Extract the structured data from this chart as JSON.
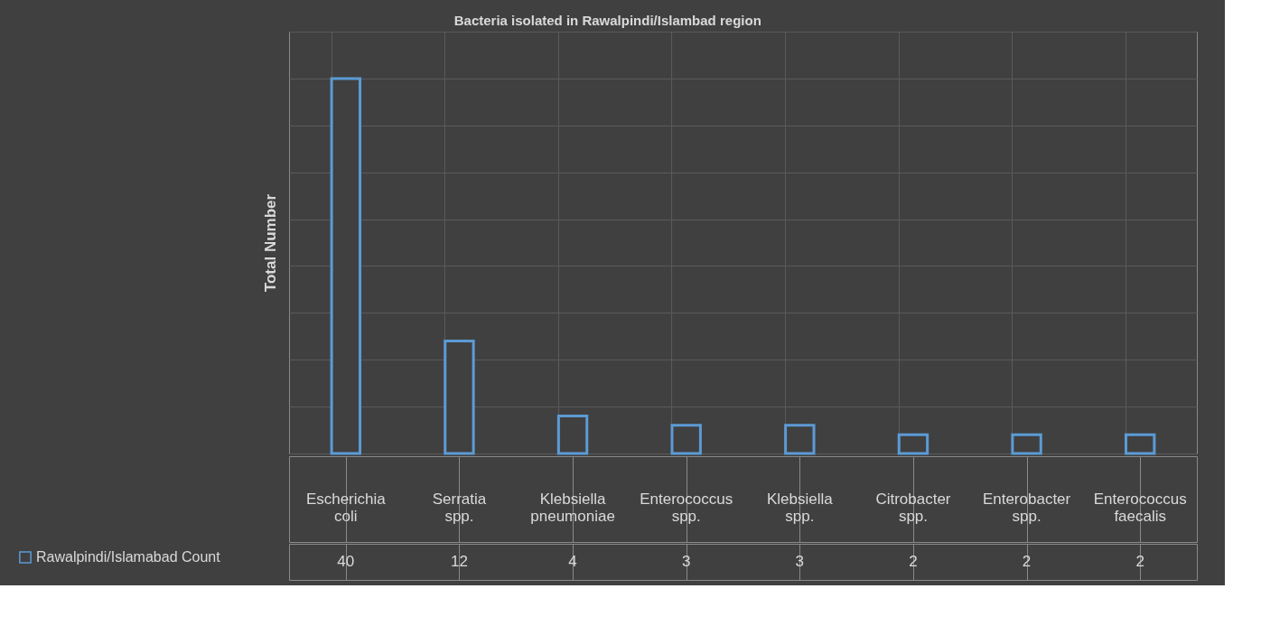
{
  "chart_data": {
    "type": "bar",
    "title": "Bacteria isolated in Rawalpindi/Islambad region",
    "ylabel": "Total Number",
    "categories": [
      "Escherichia coli",
      "Serratia spp.",
      "Klebsiella pneumoniae",
      "Enterococcus spp.",
      "Klebsiella spp.",
      "Citrobacter spp.",
      "Enterobacter spp.",
      "Enterococcus faecalis"
    ],
    "series": [
      {
        "name": "Rawalpindi/Islamabad Count",
        "color": "#5b9bd5",
        "values": [
          40,
          12,
          4,
          3,
          3,
          2,
          2,
          2
        ]
      }
    ],
    "ylim": [
      0,
      45
    ],
    "yticks": [
      {
        "value": 0,
        "label": null
      },
      {
        "value": 5,
        "label": null
      },
      {
        "value": 10,
        "label": null
      },
      {
        "value": 15,
        "label": null
      },
      {
        "value": 20,
        "label": null
      },
      {
        "value": 25,
        "label": null
      },
      {
        "value": 30,
        "label": null
      },
      {
        "value": 35,
        "label": null
      },
      {
        "value": 40,
        "label": null
      },
      {
        "value": 45,
        "label": null
      }
    ],
    "tick_labels": "x",
    "grid": true,
    "data_labels": true,
    "legend": "bottom left"
  }
}
